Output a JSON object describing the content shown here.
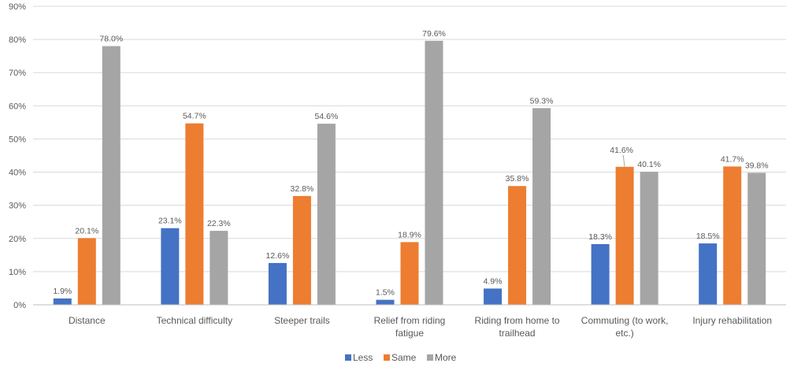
{
  "chart_data": {
    "type": "bar",
    "title": "",
    "xlabel": "",
    "ylabel": "",
    "ylim": [
      0,
      90
    ],
    "ytick_labels": [
      "0%",
      "10%",
      "20%",
      "30%",
      "40%",
      "50%",
      "60%",
      "70%",
      "80%",
      "90%"
    ],
    "categories": [
      [
        "Distance"
      ],
      [
        "Technical difficulty"
      ],
      [
        "Steeper trails"
      ],
      [
        "Relief from riding",
        "fatigue"
      ],
      [
        "Riding from home to",
        "trailhead"
      ],
      [
        "Commuting (to work,",
        "etc.)"
      ],
      [
        "Injury rehabilitation"
      ]
    ],
    "series": [
      {
        "name": "Less",
        "color": "#4472C4",
        "values": [
          1.9,
          23.1,
          12.6,
          1.5,
          4.9,
          18.3,
          18.5
        ],
        "labels": [
          "1.9%",
          "23.1%",
          "12.6%",
          "1.5%",
          "4.9%",
          "18.3%",
          "18.5%"
        ]
      },
      {
        "name": "Same",
        "color": "#ED7D31",
        "values": [
          20.1,
          54.7,
          32.8,
          18.9,
          35.8,
          41.6,
          41.7
        ],
        "labels": [
          "20.1%",
          "54.7%",
          "32.8%",
          "18.9%",
          "35.8%",
          "41.6%",
          "41.7%"
        ]
      },
      {
        "name": "More",
        "color": "#A5A5A5",
        "values": [
          78.0,
          22.3,
          54.6,
          79.6,
          59.3,
          40.1,
          39.8
        ],
        "labels": [
          "78.0%",
          "22.3%",
          "54.6%",
          "79.6%",
          "59.3%",
          "40.1%",
          "39.8%"
        ]
      }
    ],
    "grid": true,
    "legend_position": "bottom"
  }
}
